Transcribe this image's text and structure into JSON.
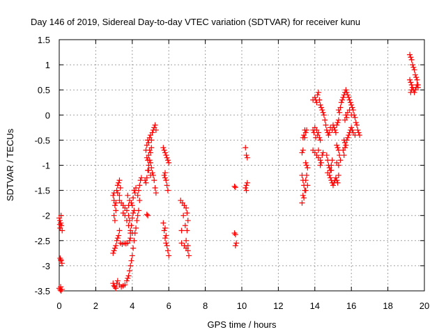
{
  "chart_data": {
    "type": "scatter",
    "title": "Day 146 of 2019, Sidereal Day-to-day VTEC variation (SDTVAR) for receiver kunu",
    "xlabel": "GPS time / hours",
    "ylabel": "SDTVAR / TECUs",
    "xlim": [
      0,
      20
    ],
    "ylim": [
      -3.5,
      1.5
    ],
    "xticks": [
      "0",
      "2",
      "4",
      "6",
      "8",
      "10",
      "12",
      "14",
      "16",
      "18",
      "20"
    ],
    "yticks": [
      "1.5",
      "1",
      "0.5",
      "0",
      "-0.5",
      "-1",
      "-1.5",
      "-2",
      "-2.5",
      "-3",
      "-3.5"
    ],
    "grid": true,
    "marker": "+",
    "color": "#ff0000",
    "segments": [
      [
        [
          0.0,
          -2.05
        ],
        [
          0.04,
          -2.1
        ],
        [
          0.08,
          -2.15
        ],
        [
          0.12,
          -2.2
        ],
        [
          0.16,
          -2.3
        ],
        [
          0.05,
          -2.25
        ],
        [
          0.1,
          -2.0
        ],
        [
          0.03,
          -2.18
        ]
      ],
      [
        [
          0.05,
          -2.85
        ],
        [
          0.1,
          -2.9
        ],
        [
          0.15,
          -2.95
        ],
        [
          0.08,
          -2.88
        ]
      ],
      [
        [
          0.0,
          -3.45
        ],
        [
          0.05,
          -3.48
        ],
        [
          0.1,
          -3.5
        ],
        [
          0.15,
          -3.47
        ],
        [
          0.08,
          -3.42
        ]
      ],
      [
        [
          2.95,
          -1.6
        ],
        [
          3.0,
          -1.7
        ],
        [
          3.05,
          -1.8
        ],
        [
          3.1,
          -1.9
        ],
        [
          3.0,
          -2.0
        ],
        [
          3.05,
          -2.1
        ],
        [
          3.1,
          -1.75
        ],
        [
          3.0,
          -1.55
        ]
      ],
      [
        [
          3.15,
          -1.5
        ],
        [
          3.2,
          -1.4
        ],
        [
          3.25,
          -1.35
        ],
        [
          3.3,
          -1.3
        ],
        [
          3.35,
          -1.45
        ],
        [
          3.2,
          -1.55
        ],
        [
          3.3,
          -1.6
        ]
      ],
      [
        [
          3.3,
          -1.7
        ],
        [
          3.4,
          -1.75
        ],
        [
          3.5,
          -1.8
        ],
        [
          3.6,
          -1.85
        ],
        [
          3.7,
          -1.9
        ],
        [
          3.8,
          -1.8
        ],
        [
          3.5,
          -1.95
        ],
        [
          3.6,
          -2.0
        ],
        [
          3.7,
          -2.1
        ],
        [
          3.8,
          -2.2
        ],
        [
          3.9,
          -2.3
        ]
      ],
      [
        [
          3.75,
          -1.6
        ],
        [
          3.85,
          -1.7
        ],
        [
          3.95,
          -1.75
        ],
        [
          4.05,
          -1.65
        ],
        [
          4.15,
          -1.55
        ],
        [
          4.2,
          -1.45
        ],
        [
          4.1,
          -1.5
        ],
        [
          4.0,
          -1.8
        ],
        [
          4.1,
          -1.9
        ]
      ],
      [
        [
          3.9,
          -2.35
        ],
        [
          3.95,
          -2.2
        ],
        [
          4.0,
          -2.05
        ],
        [
          4.05,
          -1.95
        ],
        [
          3.85,
          -2.1
        ],
        [
          3.8,
          -2.0
        ]
      ],
      [
        [
          2.95,
          -2.75
        ],
        [
          3.0,
          -2.7
        ],
        [
          3.05,
          -2.65
        ],
        [
          3.1,
          -2.6
        ],
        [
          3.15,
          -2.5
        ],
        [
          3.2,
          -2.45
        ],
        [
          3.25,
          -2.4
        ],
        [
          3.3,
          -2.3
        ]
      ],
      [
        [
          3.35,
          -2.55
        ],
        [
          3.45,
          -2.57
        ],
        [
          3.55,
          -2.55
        ],
        [
          3.65,
          -2.56
        ],
        [
          3.75,
          -2.55
        ],
        [
          3.85,
          -2.5
        ],
        [
          3.9,
          -2.45
        ],
        [
          4.0,
          -2.35
        ]
      ],
      [
        [
          2.95,
          -3.35
        ],
        [
          3.0,
          -3.4
        ],
        [
          3.05,
          -3.42
        ],
        [
          3.1,
          -3.45
        ],
        [
          3.15,
          -3.35
        ],
        [
          3.2,
          -3.3
        ],
        [
          3.3,
          -3.38
        ],
        [
          3.4,
          -3.42
        ],
        [
          3.5,
          -3.4
        ],
        [
          3.6,
          -3.38
        ],
        [
          3.7,
          -3.3
        ],
        [
          3.75,
          -3.25
        ]
      ],
      [
        [
          3.8,
          -3.2
        ],
        [
          3.85,
          -3.1
        ],
        [
          3.9,
          -3.0
        ],
        [
          3.95,
          -2.9
        ],
        [
          4.0,
          -2.8
        ],
        [
          4.05,
          -2.65
        ],
        [
          4.1,
          -2.5
        ],
        [
          4.15,
          -2.35
        ],
        [
          4.2,
          -2.25
        ],
        [
          4.25,
          -2.1
        ],
        [
          4.3,
          -2.0
        ],
        [
          4.35,
          -1.9
        ]
      ],
      [
        [
          4.3,
          -1.6
        ],
        [
          4.35,
          -1.5
        ],
        [
          4.4,
          -1.4
        ],
        [
          4.45,
          -1.3
        ],
        [
          4.5,
          -1.25
        ],
        [
          4.4,
          -1.7
        ]
      ],
      [
        [
          4.7,
          -1.3
        ],
        [
          4.75,
          -1.35
        ],
        [
          4.8,
          -1.25
        ],
        [
          4.85,
          -1.1
        ],
        [
          4.9,
          -1.0
        ],
        [
          4.95,
          -0.9
        ],
        [
          5.0,
          -0.95
        ],
        [
          5.05,
          -1.05
        ],
        [
          5.1,
          -1.15
        ],
        [
          5.15,
          -1.2
        ],
        [
          5.2,
          -1.3
        ],
        [
          5.25,
          -1.45
        ],
        [
          5.3,
          -1.55
        ]
      ],
      [
        [
          4.75,
          -0.7
        ],
        [
          4.8,
          -0.6
        ],
        [
          4.85,
          -0.5
        ],
        [
          4.9,
          -0.55
        ],
        [
          4.95,
          -0.45
        ],
        [
          5.0,
          -0.4
        ],
        [
          5.05,
          -0.5
        ],
        [
          5.1,
          -0.35
        ],
        [
          5.15,
          -0.3
        ],
        [
          5.2,
          -0.25
        ],
        [
          5.25,
          -0.2
        ],
        [
          5.3,
          -0.3
        ]
      ],
      [
        [
          4.8,
          -0.85
        ],
        [
          4.85,
          -0.9
        ],
        [
          4.9,
          -0.8
        ],
        [
          4.95,
          -0.7
        ],
        [
          5.0,
          -0.75
        ],
        [
          5.05,
          -0.65
        ],
        [
          4.9,
          -1.1
        ],
        [
          5.0,
          -1.2
        ]
      ],
      [
        [
          4.85,
          -2.0
        ],
        [
          4.8,
          -1.98
        ]
      ],
      [
        [
          5.7,
          -0.65
        ],
        [
          5.75,
          -0.7
        ],
        [
          5.8,
          -0.75
        ],
        [
          5.85,
          -0.8
        ],
        [
          5.9,
          -0.85
        ],
        [
          5.95,
          -0.9
        ],
        [
          6.0,
          -0.95
        ]
      ],
      [
        [
          5.75,
          -1.2
        ],
        [
          5.8,
          -1.25
        ],
        [
          5.85,
          -1.3
        ],
        [
          5.9,
          -1.4
        ],
        [
          5.95,
          -1.5
        ],
        [
          5.8,
          -1.15
        ]
      ],
      [
        [
          5.7,
          -2.15
        ],
        [
          5.75,
          -2.3
        ],
        [
          5.8,
          -2.45
        ],
        [
          5.85,
          -2.55
        ],
        [
          5.9,
          -2.6
        ],
        [
          5.95,
          -2.7
        ],
        [
          6.0,
          -2.8
        ],
        [
          5.8,
          -2.25
        ],
        [
          5.85,
          -2.4
        ]
      ],
      [
        [
          6.65,
          -1.7
        ],
        [
          6.75,
          -1.75
        ],
        [
          6.85,
          -1.8
        ],
        [
          6.95,
          -1.85
        ],
        [
          7.0,
          -1.95
        ],
        [
          7.05,
          -2.1
        ],
        [
          6.9,
          -2.2
        ],
        [
          7.0,
          -2.3
        ],
        [
          6.8,
          -2.0
        ],
        [
          6.7,
          -2.3
        ]
      ],
      [
        [
          6.7,
          -2.55
        ],
        [
          6.85,
          -2.6
        ],
        [
          6.95,
          -2.65
        ],
        [
          7.05,
          -2.7
        ],
        [
          7.1,
          -2.8
        ],
        [
          6.95,
          -2.5
        ],
        [
          7.05,
          -2.6
        ]
      ],
      [
        [
          9.6,
          -1.42
        ],
        [
          9.65,
          -1.44
        ]
      ],
      [
        [
          9.6,
          -2.35
        ],
        [
          9.65,
          -2.38
        ],
        [
          9.7,
          -2.55
        ],
        [
          9.65,
          -2.6
        ]
      ],
      [
        [
          10.2,
          -0.65
        ],
        [
          10.25,
          -0.8
        ],
        [
          10.3,
          -0.85
        ],
        [
          10.25,
          -1.4
        ],
        [
          10.3,
          -1.35
        ],
        [
          10.25,
          -1.5
        ],
        [
          10.2,
          -1.45
        ]
      ],
      [
        [
          13.3,
          -0.75
        ],
        [
          13.35,
          -0.7
        ],
        [
          13.3,
          -1.2
        ],
        [
          13.35,
          -1.3
        ],
        [
          13.4,
          -1.4
        ],
        [
          13.45,
          -1.5
        ],
        [
          13.35,
          -1.6
        ],
        [
          13.3,
          -1.75
        ],
        [
          13.4,
          -1.65
        ]
      ],
      [
        [
          13.35,
          -0.45
        ],
        [
          13.4,
          -0.4
        ],
        [
          13.45,
          -0.3
        ],
        [
          13.5,
          -0.35
        ],
        [
          13.55,
          -0.3
        ],
        [
          13.45,
          -0.45
        ]
      ],
      [
        [
          13.5,
          -0.95
        ],
        [
          13.55,
          -1.0
        ],
        [
          13.6,
          -1.05
        ],
        [
          13.55,
          -1.2
        ],
        [
          13.5,
          -1.3
        ],
        [
          13.6,
          -1.4
        ],
        [
          13.5,
          -1.5
        ]
      ],
      [
        [
          13.9,
          -0.3
        ],
        [
          14.0,
          -0.25
        ],
        [
          14.1,
          -0.3
        ],
        [
          14.15,
          -0.4
        ],
        [
          14.2,
          -0.35
        ],
        [
          14.25,
          -0.45
        ],
        [
          14.3,
          -0.5
        ],
        [
          13.95,
          -0.35
        ],
        [
          14.05,
          -0.45
        ]
      ],
      [
        [
          13.9,
          -0.7
        ],
        [
          14.0,
          -0.75
        ],
        [
          14.1,
          -0.8
        ],
        [
          14.2,
          -0.85
        ],
        [
          14.3,
          -0.9
        ],
        [
          14.35,
          -0.95
        ],
        [
          14.4,
          -0.8
        ],
        [
          14.45,
          -0.75
        ],
        [
          14.2,
          -0.7
        ],
        [
          14.3,
          -1.0
        ]
      ],
      [
        [
          13.9,
          0.3
        ],
        [
          14.0,
          0.35
        ],
        [
          14.05,
          0.3
        ],
        [
          14.1,
          0.25
        ],
        [
          14.15,
          0.4
        ],
        [
          14.2,
          0.45
        ],
        [
          14.25,
          0.3
        ],
        [
          14.3,
          0.2
        ],
        [
          14.35,
          0.15
        ],
        [
          14.4,
          0.1
        ],
        [
          14.45,
          0.05
        ],
        [
          14.5,
          0.0
        ]
      ],
      [
        [
          14.55,
          -0.1
        ],
        [
          14.6,
          -0.2
        ],
        [
          14.65,
          -0.3
        ],
        [
          14.7,
          -0.35
        ],
        [
          14.75,
          -0.4
        ],
        [
          14.8,
          -0.35
        ],
        [
          14.85,
          -0.25
        ]
      ],
      [
        [
          14.65,
          -0.8
        ],
        [
          14.7,
          -0.9
        ],
        [
          14.75,
          -1.0
        ],
        [
          14.8,
          -1.05
        ],
        [
          14.85,
          -1.1
        ],
        [
          14.9,
          -1.0
        ],
        [
          14.95,
          -0.9
        ],
        [
          14.7,
          -1.15
        ],
        [
          14.8,
          -1.2
        ],
        [
          14.9,
          -1.1
        ]
      ],
      [
        [
          14.85,
          -1.25
        ],
        [
          14.9,
          -1.3
        ],
        [
          14.95,
          -1.35
        ],
        [
          15.0,
          -1.4
        ],
        [
          15.05,
          -1.35
        ],
        [
          15.1,
          -1.3
        ],
        [
          15.15,
          -1.25
        ],
        [
          15.2,
          -1.3
        ],
        [
          15.25,
          -1.35
        ],
        [
          15.3,
          -1.2
        ]
      ],
      [
        [
          15.0,
          -0.2
        ],
        [
          15.05,
          -0.25
        ],
        [
          15.1,
          -0.3
        ],
        [
          15.15,
          -0.35
        ],
        [
          15.2,
          -0.2
        ],
        [
          15.25,
          -0.15
        ],
        [
          15.3,
          -0.1
        ],
        [
          14.95,
          -0.3
        ]
      ],
      [
        [
          15.2,
          -0.6
        ],
        [
          15.25,
          -0.65
        ],
        [
          15.3,
          -0.7
        ],
        [
          15.35,
          -0.8
        ],
        [
          15.4,
          -0.9
        ],
        [
          15.3,
          -1.0
        ],
        [
          15.2,
          -0.95
        ]
      ],
      [
        [
          15.3,
          0.1
        ],
        [
          15.35,
          0.05
        ],
        [
          15.4,
          0.15
        ],
        [
          15.45,
          0.25
        ],
        [
          15.5,
          0.3
        ],
        [
          15.55,
          0.35
        ],
        [
          15.6,
          0.4
        ],
        [
          15.65,
          0.45
        ],
        [
          15.7,
          0.5
        ],
        [
          15.75,
          0.45
        ],
        [
          15.8,
          0.4
        ],
        [
          15.85,
          0.35
        ]
      ],
      [
        [
          15.9,
          0.3
        ],
        [
          15.95,
          0.25
        ],
        [
          16.0,
          0.2
        ],
        [
          16.05,
          0.15
        ],
        [
          16.1,
          0.1
        ],
        [
          16.15,
          0.0
        ],
        [
          16.2,
          -0.05
        ],
        [
          16.25,
          -0.15
        ],
        [
          16.3,
          -0.2
        ],
        [
          16.35,
          -0.3
        ],
        [
          16.4,
          -0.35
        ],
        [
          16.45,
          -0.4
        ]
      ],
      [
        [
          15.6,
          -0.5
        ],
        [
          15.65,
          -0.55
        ],
        [
          15.7,
          -0.6
        ],
        [
          15.75,
          -0.5
        ],
        [
          15.8,
          -0.45
        ],
        [
          15.85,
          -0.4
        ],
        [
          15.9,
          -0.35
        ],
        [
          15.95,
          -0.3
        ],
        [
          16.0,
          -0.25
        ],
        [
          16.05,
          -0.3
        ],
        [
          16.1,
          -0.35
        ],
        [
          16.2,
          -0.4
        ],
        [
          15.55,
          -0.7
        ],
        [
          15.6,
          -0.8
        ],
        [
          15.65,
          -0.65
        ]
      ],
      [
        [
          15.7,
          0.0
        ],
        [
          15.75,
          -0.05
        ],
        [
          15.8,
          0.05
        ],
        [
          15.9,
          0.1
        ],
        [
          16.0,
          0.0
        ],
        [
          15.65,
          -0.1
        ]
      ],
      [
        [
          19.2,
          1.2
        ],
        [
          19.25,
          1.15
        ],
        [
          19.3,
          1.1
        ],
        [
          19.35,
          1.0
        ],
        [
          19.4,
          0.95
        ],
        [
          19.45,
          0.9
        ],
        [
          19.5,
          0.8
        ],
        [
          19.55,
          0.75
        ],
        [
          19.6,
          0.7
        ],
        [
          19.65,
          0.6
        ]
      ],
      [
        [
          19.2,
          0.7
        ],
        [
          19.25,
          0.65
        ],
        [
          19.3,
          0.6
        ],
        [
          19.35,
          0.55
        ],
        [
          19.4,
          0.5
        ],
        [
          19.45,
          0.45
        ],
        [
          19.5,
          0.5
        ],
        [
          19.55,
          0.55
        ],
        [
          19.6,
          0.6
        ],
        [
          19.65,
          0.55
        ],
        [
          19.25,
          0.45
        ],
        [
          19.3,
          0.5
        ]
      ]
    ]
  }
}
